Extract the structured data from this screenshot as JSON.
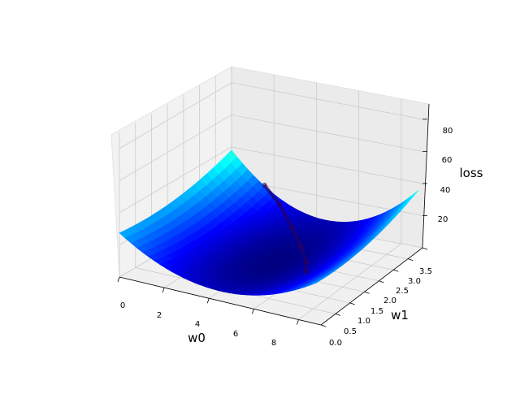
{
  "chart_data": {
    "type": "surface3d",
    "title": "",
    "xlabel": "w0",
    "ylabel": "w1",
    "zlabel": "loss",
    "x_ticks": [
      "0",
      "2",
      "4",
      "6",
      "8"
    ],
    "y_ticks": [
      "0.0",
      "0.5",
      "1.0",
      "1.5",
      "2.0",
      "2.5",
      "3.0",
      "3.5"
    ],
    "z_ticks": [
      "20",
      "40",
      "60",
      "80"
    ],
    "xlim": [
      0,
      9
    ],
    "ylim": [
      0,
      3.5
    ],
    "zlim": [
      0,
      90
    ],
    "colormap": "jet",
    "surface_z_range": [
      1,
      88
    ],
    "trajectory": [
      {
        "w0": 2.0,
        "w1": 3.2,
        "loss": 25
      },
      {
        "w0": 3.0,
        "w1": 3.0,
        "loss": 18
      },
      {
        "w0": 4.0,
        "w1": 2.7,
        "loss": 10
      },
      {
        "w0": 5.0,
        "w1": 2.3,
        "loss": 6
      },
      {
        "w0": 5.8,
        "w1": 1.9,
        "loss": 4
      },
      {
        "w0": 6.2,
        "w1": 1.6,
        "loss": 3
      }
    ],
    "grid": true
  }
}
